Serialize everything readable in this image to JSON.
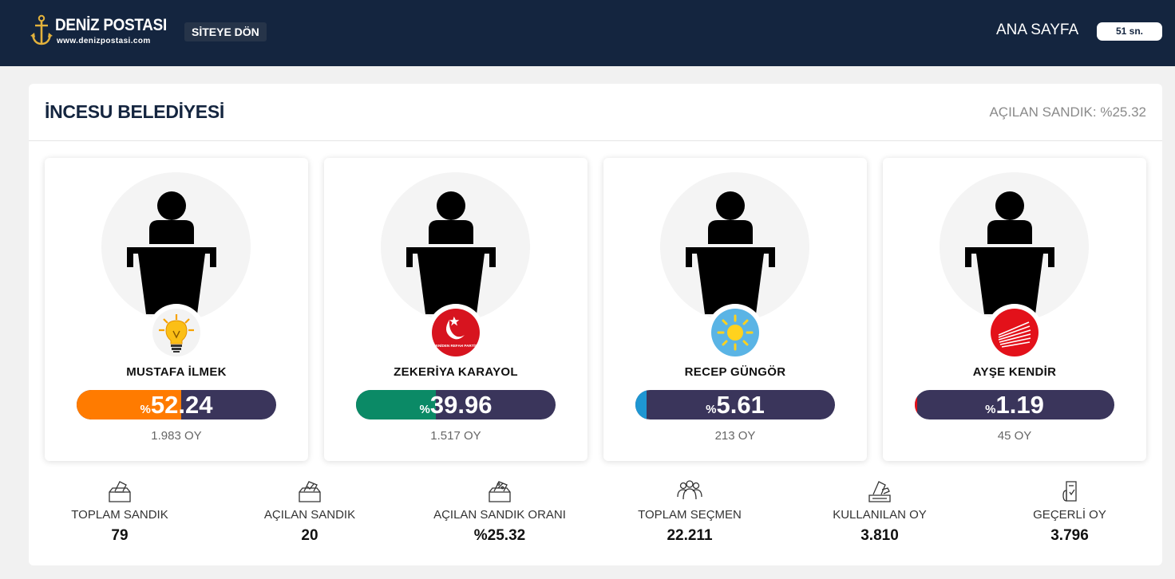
{
  "header": {
    "logo_title": "DENİZ POSTASI",
    "logo_sub": "www.denizpostasi.com",
    "back_label": "SİTEYE DÖN",
    "home_label": "ANA SAYFA",
    "timer": "51 sn."
  },
  "main": {
    "title": "İNCESU BELEDİYESİ",
    "opened_box": "AÇILAN SANDIK: %25.32"
  },
  "candidates": [
    {
      "name": "MUSTAFA İLMEK",
      "percent_sign": "%",
      "percent": "52.24",
      "percent_value": 52.24,
      "votes": "1.983 OY",
      "party_logo": "ak-parti-bulb-icon",
      "color": "#ff7b00"
    },
    {
      "name": "ZEKERİYA KARAYOL",
      "percent_sign": "%",
      "percent": "39.96",
      "percent_value": 39.96,
      "votes": "1.517 OY",
      "party_logo": "yeniden-refah-icon",
      "color": "#0b8a66",
      "party_caption": "YENİDEN REFAH PARTİSİ"
    },
    {
      "name": "RECEP GÜNGÖR",
      "percent_sign": "%",
      "percent": "5.61",
      "percent_value": 5.61,
      "votes": "213 OY",
      "party_logo": "iyi-parti-sun-icon",
      "color": "#1e96d2"
    },
    {
      "name": "AYŞE KENDİR",
      "percent_sign": "%",
      "percent": "1.19",
      "percent_value": 1.19,
      "votes": "45 OY",
      "party_logo": "chp-six-arrows-icon",
      "color": "#e3111a"
    }
  ],
  "stats": [
    {
      "label": "TOPLAM SANDIK",
      "value": "79",
      "icon": "ballot-box-icon"
    },
    {
      "label": "AÇILAN SANDIK",
      "value": "20",
      "icon": "ballot-check-icon"
    },
    {
      "label": "AÇILAN SANDIK ORANI",
      "value": "%25.32",
      "icon": "ballot-percent-icon"
    },
    {
      "label": "TOPLAM SEÇMEN",
      "value": "22.211",
      "icon": "voters-group-icon"
    },
    {
      "label": "KULLANILAN OY",
      "value": "3.810",
      "icon": "vote-cast-icon"
    },
    {
      "label": "GEÇERLİ OY",
      "value": "3.796",
      "icon": "valid-vote-icon"
    }
  ],
  "colors": {
    "header_bg": "#14253f",
    "bar_track": "#3a355b"
  }
}
